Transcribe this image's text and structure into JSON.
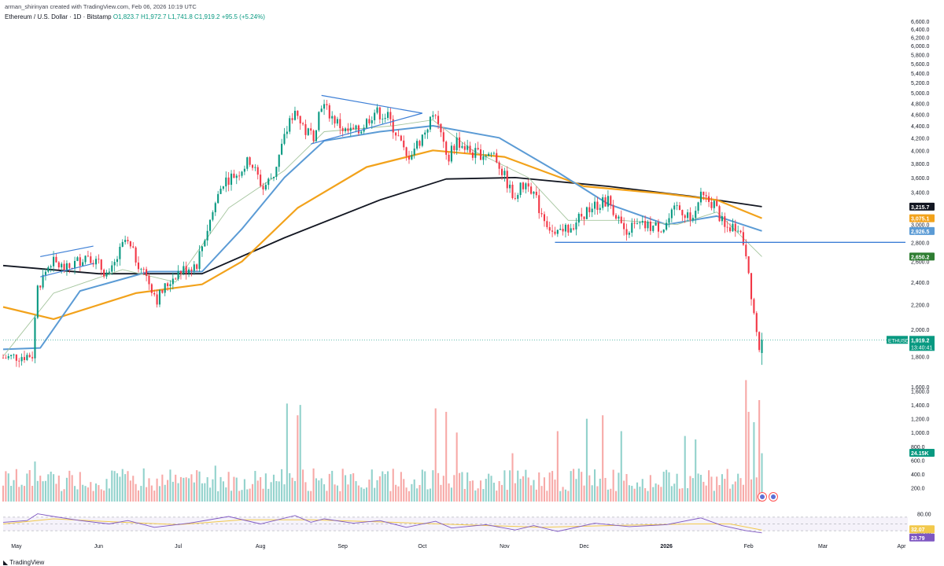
{
  "header": {
    "creator": "arman_shirinyan created with TradingView.com, Feb 06, 2026 10:19 UTC",
    "symbol": "Ethereum / U.S. Dollar · 1D · Bitstamp",
    "ohlc": "O1,823.7 H1,972.7 L1,741.8 C1,919.2 +95.5 (+5.24%)"
  },
  "footer": {
    "logo_text": "TradingView"
  },
  "colors": {
    "up": "#089981",
    "down": "#f23645",
    "vol_up": "#92d2cc",
    "vol_down": "#f7a9a7",
    "ma_fast": "#a5c59e",
    "ma_mid": "#5b9bd5",
    "ma_slow": "#f2a21b",
    "ma_long": "#131722",
    "drawing": "#3d7fd6",
    "rsi_line": "#7e57c2",
    "rsi_ma": "#f2c94c"
  },
  "chart_data": [
    {
      "type": "candlestick",
      "symbol": "ETHUSD",
      "ylim": [
        1600,
        6700
      ],
      "y_scale": "log",
      "price_ticks": [
        "6,600.0",
        "6,400.0",
        "6,200.0",
        "6,000.0",
        "5,800.0",
        "5,600.0",
        "5,400.0",
        "5,200.0",
        "5,000.0",
        "4,800.0",
        "4,600.0",
        "4,400.0",
        "4,200.0",
        "4,000.0",
        "3,800.0",
        "3,600.0",
        "3,400.0",
        "3,200.0",
        "3,000.0",
        "2,800.0",
        "2,600.0",
        "2,400.0",
        "2,200.0",
        "2,000.0",
        "1,800.0",
        "1,600.0"
      ],
      "x_ticks": [
        "May",
        "Jun",
        "Jul",
        "Aug",
        "Sep",
        "Oct",
        "Nov",
        "Dec",
        "2026",
        "Feb",
        "Mar",
        "Apr"
      ],
      "x_range": [
        "2025-04-26",
        "2026-04-02"
      ],
      "price_path": [
        [
          "2025-04-26",
          1790
        ],
        [
          "2025-05-07",
          1810
        ],
        [
          "2025-05-09",
          2350
        ],
        [
          "2025-05-14",
          2600
        ],
        [
          "2025-05-20",
          2520
        ],
        [
          "2025-05-28",
          2680
        ],
        [
          "2025-06-05",
          2450
        ],
        [
          "2025-06-11",
          2820
        ],
        [
          "2025-06-20",
          2400
        ],
        [
          "2025-06-23",
          2250
        ],
        [
          "2025-06-30",
          2480
        ],
        [
          "2025-07-08",
          2580
        ],
        [
          "2025-07-12",
          2950
        ],
        [
          "2025-07-18",
          3550
        ],
        [
          "2025-07-23",
          3650
        ],
        [
          "2025-07-28",
          3850
        ],
        [
          "2025-08-02",
          3450
        ],
        [
          "2025-08-06",
          3650
        ],
        [
          "2025-08-10",
          4200
        ],
        [
          "2025-08-14",
          4700
        ],
        [
          "2025-08-18",
          4300
        ],
        [
          "2025-08-21",
          4250
        ],
        [
          "2025-08-24",
          4800
        ],
        [
          "2025-08-28",
          4550
        ],
        [
          "2025-09-02",
          4300
        ],
        [
          "2025-09-07",
          4300
        ],
        [
          "2025-09-13",
          4650
        ],
        [
          "2025-09-18",
          4550
        ],
        [
          "2025-09-22",
          4200
        ],
        [
          "2025-09-25",
          3880
        ],
        [
          "2025-09-30",
          4150
        ],
        [
          "2025-10-06",
          4650
        ],
        [
          "2025-10-10",
          3850
        ],
        [
          "2025-10-14",
          4150
        ],
        [
          "2025-10-20",
          3950
        ],
        [
          "2025-10-28",
          3950
        ],
        [
          "2025-11-04",
          3350
        ],
        [
          "2025-11-10",
          3550
        ],
        [
          "2025-11-14",
          3200
        ],
        [
          "2025-11-20",
          2850
        ],
        [
          "2025-11-25",
          2950
        ],
        [
          "2025-12-03",
          3200
        ],
        [
          "2025-12-10",
          3300
        ],
        [
          "2025-12-16",
          2950
        ],
        [
          "2025-12-22",
          2980
        ],
        [
          "2025-12-31",
          2970
        ],
        [
          "2026-01-05",
          3200
        ],
        [
          "2026-01-10",
          3100
        ],
        [
          "2026-01-14",
          3330
        ],
        [
          "2026-01-19",
          3250
        ],
        [
          "2026-01-23",
          2950
        ],
        [
          "2026-01-28",
          3000
        ],
        [
          "2026-01-31",
          2700
        ],
        [
          "2026-02-02",
          2300
        ],
        [
          "2026-02-05",
          1830
        ],
        [
          "2026-02-06",
          1919
        ]
      ],
      "last_price": "1,919.2",
      "countdown": "13:40:41",
      "horizontal_line": 2800,
      "price_labels": [
        {
          "value": "3,215.7",
          "color": "#131722"
        },
        {
          "value": "3,075.1",
          "color": "#f2a21b"
        },
        {
          "value": "2,926.5",
          "color": "#5b9bd5"
        },
        {
          "value": "2,650.2",
          "color": "#2e7d32"
        }
      ],
      "moving_averages": [
        {
          "series": "ma_long",
          "path": [
            [
              "2025-04-26",
              2560
            ],
            [
              "2025-06-01",
              2480
            ],
            [
              "2025-07-10",
              2480
            ],
            [
              "2025-08-10",
              2850
            ],
            [
              "2025-09-15",
              3300
            ],
            [
              "2025-10-10",
              3580
            ],
            [
              "2025-11-05",
              3600
            ],
            [
              "2025-12-10",
              3480
            ],
            [
              "2026-01-10",
              3350
            ],
            [
              "2026-02-06",
              3215.7
            ]
          ]
        },
        {
          "series": "ma_slow",
          "path": [
            [
              "2025-04-26",
              2180
            ],
            [
              "2025-05-15",
              2080
            ],
            [
              "2025-06-15",
              2300
            ],
            [
              "2025-07-10",
              2380
            ],
            [
              "2025-07-25",
              2600
            ],
            [
              "2025-08-15",
              3200
            ],
            [
              "2025-09-10",
              3750
            ],
            [
              "2025-10-05",
              4000
            ],
            [
              "2025-11-01",
              3900
            ],
            [
              "2025-12-01",
              3480
            ],
            [
              "2026-01-01",
              3380
            ],
            [
              "2026-01-20",
              3300
            ],
            [
              "2026-02-06",
              3075.1
            ]
          ]
        },
        {
          "series": "ma_mid",
          "path": [
            [
              "2025-04-26",
              1850
            ],
            [
              "2025-05-10",
              1860
            ],
            [
              "2025-05-25",
              2320
            ],
            [
              "2025-06-20",
              2500
            ],
            [
              "2025-07-10",
              2500
            ],
            [
              "2025-07-25",
              2950
            ],
            [
              "2025-08-10",
              3600
            ],
            [
              "2025-08-25",
              4150
            ],
            [
              "2025-09-15",
              4300
            ],
            [
              "2025-10-05",
              4400
            ],
            [
              "2025-10-30",
              4200
            ],
            [
              "2025-11-20",
              3700
            ],
            [
              "2025-12-10",
              3250
            ],
            [
              "2026-01-01",
              3000
            ],
            [
              "2026-01-20",
              3100
            ],
            [
              "2026-02-06",
              2926.5
            ]
          ]
        },
        {
          "series": "ma_fast",
          "path": [
            [
              "2025-04-26",
              1800
            ],
            [
              "2025-05-15",
              2300
            ],
            [
              "2025-06-10",
              2520
            ],
            [
              "2025-06-30",
              2400
            ],
            [
              "2025-07-20",
              3200
            ],
            [
              "2025-08-10",
              3700
            ],
            [
              "2025-08-25",
              4300
            ],
            [
              "2025-09-20",
              4400
            ],
            [
              "2025-10-05",
              4500
            ],
            [
              "2025-10-20",
              4000
            ],
            [
              "2025-11-10",
              3600
            ],
            [
              "2025-11-25",
              3050
            ],
            [
              "2025-12-15",
              3050
            ],
            [
              "2026-01-05",
              3000
            ],
            [
              "2026-01-20",
              3150
            ],
            [
              "2026-02-06",
              2650.2
            ]
          ]
        }
      ],
      "drawings": [
        {
          "type": "segment",
          "from": [
            "2025-05-10",
            2650
          ],
          "to": [
            "2025-05-30",
            2760
          ]
        },
        {
          "type": "segment",
          "from": [
            "2025-05-10",
            2450
          ],
          "to": [
            "2025-05-30",
            2580
          ]
        },
        {
          "type": "segment",
          "from": [
            "2025-08-24",
            4950
          ],
          "to": [
            "2025-10-01",
            4620
          ]
        },
        {
          "type": "segment",
          "from": [
            "2025-08-20",
            4100
          ],
          "to": [
            "2025-10-01",
            4620
          ]
        }
      ]
    },
    {
      "type": "bar",
      "name": "volume",
      "ylim": [
        0,
        1800
      ],
      "volume_ticks": [
        "1,600.0",
        "1,400.0",
        "1,200.0",
        "1,000.0",
        "800.0",
        "600.0",
        "400.0",
        "200.0"
      ],
      "last_volume": "24.15K",
      "spikes": [
        [
          "2025-05-08",
          580,
          "up"
        ],
        [
          "2025-06-18",
          480,
          "up"
        ],
        [
          "2025-07-15",
          520,
          "up"
        ],
        [
          "2025-08-11",
          1420,
          "up"
        ],
        [
          "2025-08-15",
          1250,
          "down"
        ],
        [
          "2025-08-16",
          1400,
          "up"
        ],
        [
          "2025-10-06",
          1350,
          "down"
        ],
        [
          "2025-10-10",
          1300,
          "down"
        ],
        [
          "2025-10-14",
          1000,
          "down"
        ],
        [
          "2025-11-04",
          700,
          "down"
        ],
        [
          "2025-11-21",
          1020,
          "down"
        ],
        [
          "2025-12-02",
          1200,
          "up"
        ],
        [
          "2025-12-08",
          1250,
          "down"
        ],
        [
          "2025-12-15",
          1020,
          "up"
        ],
        [
          "2026-01-08",
          950,
          "up"
        ],
        [
          "2026-01-12",
          900,
          "up"
        ],
        [
          "2026-01-31",
          1760,
          "down"
        ],
        [
          "2026-02-01",
          1300,
          "down"
        ],
        [
          "2026-02-03",
          1150,
          "up"
        ],
        [
          "2026-02-05",
          1470,
          "down"
        ],
        [
          "2026-02-06",
          700,
          "up"
        ]
      ]
    },
    {
      "type": "line",
      "name": "rsi",
      "ylim": [
        0,
        100
      ],
      "rsi_ticks": [
        "80.00",
        "20.00"
      ],
      "bands": [
        30,
        70
      ],
      "values": [
        "32.07",
        "23.79"
      ],
      "rsi_path": [
        [
          "2025-04-26",
          55
        ],
        [
          "2025-05-05",
          60
        ],
        [
          "2025-05-09",
          80
        ],
        [
          "2025-05-15",
          72
        ],
        [
          "2025-05-25",
          60
        ],
        [
          "2025-06-05",
          50
        ],
        [
          "2025-06-12",
          60
        ],
        [
          "2025-06-22",
          40
        ],
        [
          "2025-07-05",
          52
        ],
        [
          "2025-07-20",
          72
        ],
        [
          "2025-08-01",
          50
        ],
        [
          "2025-08-14",
          75
        ],
        [
          "2025-08-20",
          55
        ],
        [
          "2025-08-25",
          65
        ],
        [
          "2025-09-05",
          52
        ],
        [
          "2025-09-15",
          60
        ],
        [
          "2025-09-25",
          40
        ],
        [
          "2025-10-06",
          58
        ],
        [
          "2025-10-12",
          38
        ],
        [
          "2025-10-25",
          48
        ],
        [
          "2025-11-05",
          32
        ],
        [
          "2025-11-12",
          45
        ],
        [
          "2025-11-21",
          28
        ],
        [
          "2025-12-05",
          52
        ],
        [
          "2025-12-18",
          42
        ],
        [
          "2026-01-01",
          48
        ],
        [
          "2026-01-14",
          68
        ],
        [
          "2026-01-22",
          45
        ],
        [
          "2026-01-31",
          30
        ],
        [
          "2026-02-06",
          23.79
        ]
      ],
      "rsi_ma_path": [
        [
          "2025-04-26",
          50
        ],
        [
          "2025-05-15",
          65
        ],
        [
          "2025-06-10",
          55
        ],
        [
          "2025-07-01",
          48
        ],
        [
          "2025-07-25",
          62
        ],
        [
          "2025-08-20",
          62
        ],
        [
          "2025-09-20",
          55
        ],
        [
          "2025-10-15",
          48
        ],
        [
          "2025-11-15",
          40
        ],
        [
          "2025-12-10",
          45
        ],
        [
          "2026-01-10",
          50
        ],
        [
          "2026-01-25",
          50
        ],
        [
          "2026-02-06",
          32.07
        ]
      ]
    }
  ]
}
